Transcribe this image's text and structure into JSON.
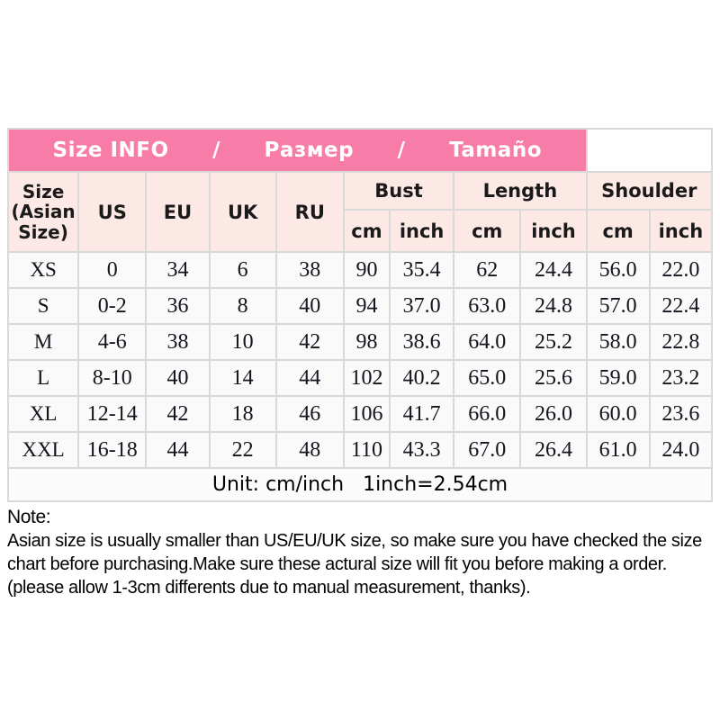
{
  "banner": {
    "items": [
      "Size INFO",
      "/",
      "Размер",
      "/",
      "Tamaño"
    ]
  },
  "table": {
    "corner_label": "Size (Asian Size)",
    "region_headers": [
      "US",
      "EU",
      "UK",
      "RU"
    ],
    "measure_groups": [
      "Bust",
      "Length",
      "Shoulder"
    ],
    "unit_headers": [
      "cm",
      "inch",
      "cm",
      "inch",
      "cm",
      "inch"
    ],
    "rows": [
      [
        "XS",
        "0",
        "34",
        "6",
        "38",
        "90",
        "35.4",
        "62",
        "24.4",
        "56.0",
        "22.0"
      ],
      [
        "S",
        "0-2",
        "36",
        "8",
        "40",
        "94",
        "37.0",
        "63.0",
        "24.8",
        "57.0",
        "22.4"
      ],
      [
        "M",
        "4-6",
        "38",
        "10",
        "42",
        "98",
        "38.6",
        "64.0",
        "25.2",
        "58.0",
        "22.8"
      ],
      [
        "L",
        "8-10",
        "40",
        "14",
        "44",
        "102",
        "40.2",
        "65.0",
        "25.6",
        "59.0",
        "23.2"
      ],
      [
        "XL",
        "12-14",
        "42",
        "18",
        "46",
        "106",
        "41.7",
        "66.0",
        "26.0",
        "60.0",
        "23.6"
      ],
      [
        "XXL",
        "16-18",
        "44",
        "22",
        "48",
        "110",
        "43.3",
        "67.0",
        "26.4",
        "61.0",
        "24.0"
      ]
    ],
    "unit_note": "Unit: cm/inch   1inch=2.54cm"
  },
  "note": {
    "title": "Note:",
    "body": "Asian size is usually smaller than US/EU/UK size, so make sure you have checked the size chart before purchasing.Make sure these actural size will fit you before making a order.(please allow 1-3cm differents due to manual measurement, thanks)."
  },
  "colors": {
    "banner_pink": "#f87ca8",
    "banner_top_border": "#d2849c",
    "header_pale_pink": "#fce8e5",
    "data_cell_bg": "#fafafa",
    "grid_line": "#d9d9d9",
    "banner_text": "#ffffff",
    "text_dark": "#14141e"
  }
}
